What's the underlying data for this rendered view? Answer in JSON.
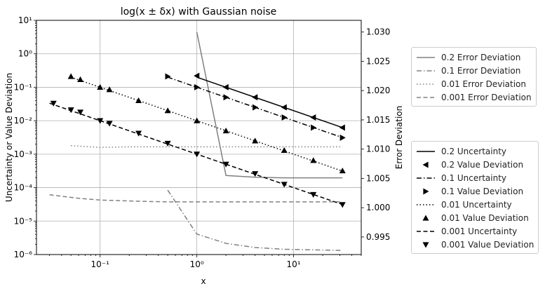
{
  "chart_data": {
    "type": "line",
    "title": "log(x ± δx) with Gaussian noise",
    "xlabel": "x",
    "ylabel": "Uncertainty or Value Deviation",
    "y2label": "Error Deviation",
    "xscale": "log",
    "yscale": "log",
    "xlim": [
      0.022,
      50
    ],
    "ylim": [
      1e-06,
      10
    ],
    "y2lim": [
      0.992,
      1.032
    ],
    "grid": true,
    "x_tick_labels": [
      "10⁻¹",
      "10⁰",
      "10¹"
    ],
    "x_tick_values": [
      0.1,
      1,
      10
    ],
    "y_tick_labels": [
      "10⁻⁶",
      "10⁻⁵",
      "10⁻⁴",
      "10⁻³",
      "10⁻²",
      "10⁻¹",
      "10⁰",
      "10¹"
    ],
    "y_tick_values": [
      1e-06,
      1e-05,
      0.0001,
      0.001,
      0.01,
      0.1,
      1,
      10
    ],
    "y2_tick_labels": [
      "0.995",
      "1.000",
      "1.005",
      "1.010",
      "1.015",
      "1.020",
      "1.025",
      "1.030"
    ],
    "y2_tick_values": [
      0.995,
      1.0,
      1.005,
      1.01,
      1.015,
      1.02,
      1.025,
      1.03
    ],
    "error_series": [
      {
        "name": "0.2 Error Deviation",
        "style": "solid",
        "color": "#808080",
        "x": [
          1,
          2,
          4,
          8,
          16,
          32
        ],
        "y": [
          1.03,
          1.0055,
          1.0052,
          1.0051,
          1.0051,
          1.0051
        ]
      },
      {
        "name": "0.1 Error Deviation",
        "style": "dashdot",
        "color": "#808080",
        "x": [
          0.5,
          1,
          2,
          4,
          8,
          16,
          32
        ],
        "y": [
          1.003,
          0.9955,
          0.9939,
          0.9932,
          0.9929,
          0.9928,
          0.9927
        ]
      },
      {
        "name": "0.01 Error Deviation",
        "style": "dotted",
        "color": "#808080",
        "x": [
          0.05,
          0.1,
          0.2,
          0.5,
          1,
          2,
          4,
          8,
          16,
          32
        ],
        "y": [
          1.0106,
          1.0103,
          1.0104,
          1.0104,
          1.0104,
          1.0104,
          1.0104,
          1.0104,
          1.0104,
          1.0104
        ]
      },
      {
        "name": "0.001 Error Deviation",
        "style": "dashed",
        "color": "#808080",
        "x": [
          0.03,
          0.06,
          0.1,
          0.25,
          0.5,
          1,
          2,
          4,
          8,
          16,
          32
        ],
        "y": [
          1.0022,
          1.0016,
          1.0013,
          1.0011,
          1.001,
          1.001,
          1.001,
          1.001,
          1.001,
          1.001,
          1.001
        ]
      }
    ],
    "uncertainty_series": [
      {
        "name": "0.2 Uncertainty",
        "style": "solid",
        "color": "#000000",
        "x": [
          1,
          32
        ],
        "y": [
          0.2,
          0.00625
        ]
      },
      {
        "name": "0.1 Uncertainty",
        "style": "dashdot",
        "color": "#000000",
        "x": [
          0.5,
          32
        ],
        "y": [
          0.2,
          0.003125
        ]
      },
      {
        "name": "0.01 Uncertainty",
        "style": "dotted",
        "color": "#000000",
        "x": [
          0.05,
          32
        ],
        "y": [
          0.2,
          0.0003125
        ]
      },
      {
        "name": "0.001 Uncertainty",
        "style": "dashed",
        "color": "#000000",
        "x": [
          0.03,
          32
        ],
        "y": [
          0.0333,
          3.125e-05
        ]
      }
    ],
    "value_series": [
      {
        "name": "0.2 Value Deviation",
        "marker": "triangle-left",
        "color": "#000000",
        "x": [
          1,
          2,
          4,
          8,
          16,
          32
        ],
        "y": [
          0.22,
          0.1,
          0.05,
          0.025,
          0.0125,
          0.0062
        ]
      },
      {
        "name": "0.1 Value Deviation",
        "marker": "triangle-right",
        "color": "#000000",
        "x": [
          0.5,
          1,
          2,
          4,
          8,
          16,
          32
        ],
        "y": [
          0.21,
          0.1,
          0.05,
          0.025,
          0.0125,
          0.0062,
          0.0031
        ]
      },
      {
        "name": "0.01 Value Deviation",
        "marker": "triangle-up",
        "color": "#000000",
        "x": [
          0.05,
          0.0625,
          0.1,
          0.125,
          0.25,
          0.5,
          1,
          2,
          4,
          8,
          16,
          32
        ],
        "y": [
          0.21,
          0.17,
          0.1,
          0.085,
          0.04,
          0.02,
          0.01,
          0.005,
          0.0025,
          0.0013,
          0.00065,
          0.00032
        ]
      },
      {
        "name": "0.001 Value Deviation",
        "marker": "triangle-down",
        "color": "#000000",
        "x": [
          0.033,
          0.05,
          0.0625,
          0.1,
          0.125,
          0.25,
          0.5,
          1,
          2,
          4,
          8,
          16,
          32
        ],
        "y": [
          0.033,
          0.021,
          0.018,
          0.01,
          0.0083,
          0.0042,
          0.0021,
          0.001,
          0.0005,
          0.00026,
          0.000125,
          6.2e-05,
          3.1e-05
        ]
      }
    ],
    "legend_upper": [
      "0.2 Error Deviation",
      "0.1 Error Deviation",
      "0.01 Error Deviation",
      "0.001 Error Deviation"
    ],
    "legend_lower": [
      "0.2 Uncertainty",
      "0.2 Value Deviation",
      "0.1 Uncertainty",
      "0.1 Value Deviation",
      "0.01 Uncertainty",
      "0.01 Value Deviation",
      "0.001 Uncertainty",
      "0.001 Value Deviation"
    ]
  }
}
